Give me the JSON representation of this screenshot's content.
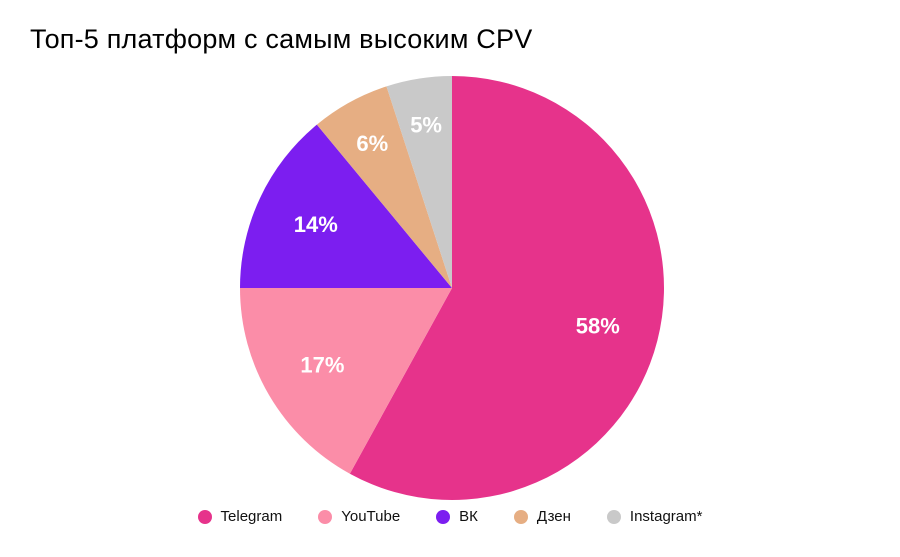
{
  "title": "Топ-5 платформ с самым высоким CPV",
  "chart_data": {
    "type": "pie",
    "title": "Топ-5 платформ с самым высоким CPV",
    "labels": [
      "Telegram",
      "YouTube",
      "ВК",
      "Дзен",
      "Instagram*"
    ],
    "values": [
      58,
      17,
      14,
      6,
      5
    ],
    "value_labels": [
      "58%",
      "17%",
      "14%",
      "6%",
      "5%"
    ],
    "colors": [
      "#E6338B",
      "#FB8DA8",
      "#7C1EF0",
      "#E6AE83",
      "#C9C9C9"
    ],
    "unit": "%",
    "start_angle_deg": 0,
    "direction": "clockwise",
    "slice_label_color": "#FFFFFF",
    "legend_position": "bottom",
    "background": "#FFFFFF"
  }
}
